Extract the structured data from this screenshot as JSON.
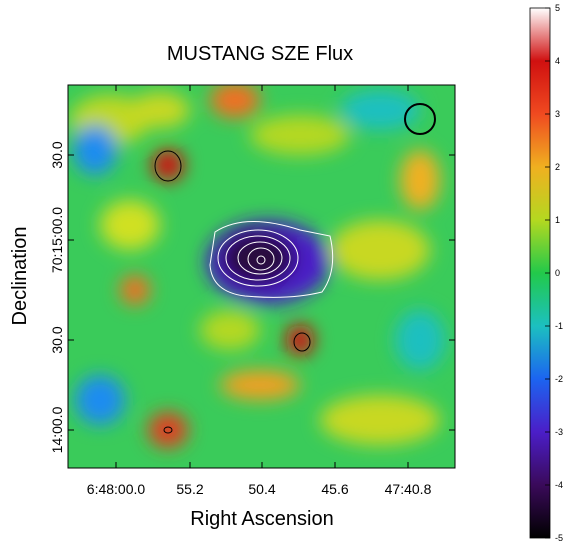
{
  "chart_data": {
    "type": "image",
    "title": "MUSTANG SZE Flux",
    "xlabel": "Right Ascension",
    "ylabel": "Declination",
    "x_tick_labels": [
      "6:48:00.0",
      "55.2",
      "50.4",
      "45.6",
      "47:40.8"
    ],
    "y_tick_labels": [
      "30.0",
      "70:15:00.0",
      "30.0",
      "14:00.0"
    ],
    "colorbar": {
      "lim": [
        -5,
        5
      ],
      "ticks": [
        -5,
        -4,
        -3,
        -2,
        -1,
        0,
        1,
        2,
        3,
        4,
        5
      ]
    }
  }
}
